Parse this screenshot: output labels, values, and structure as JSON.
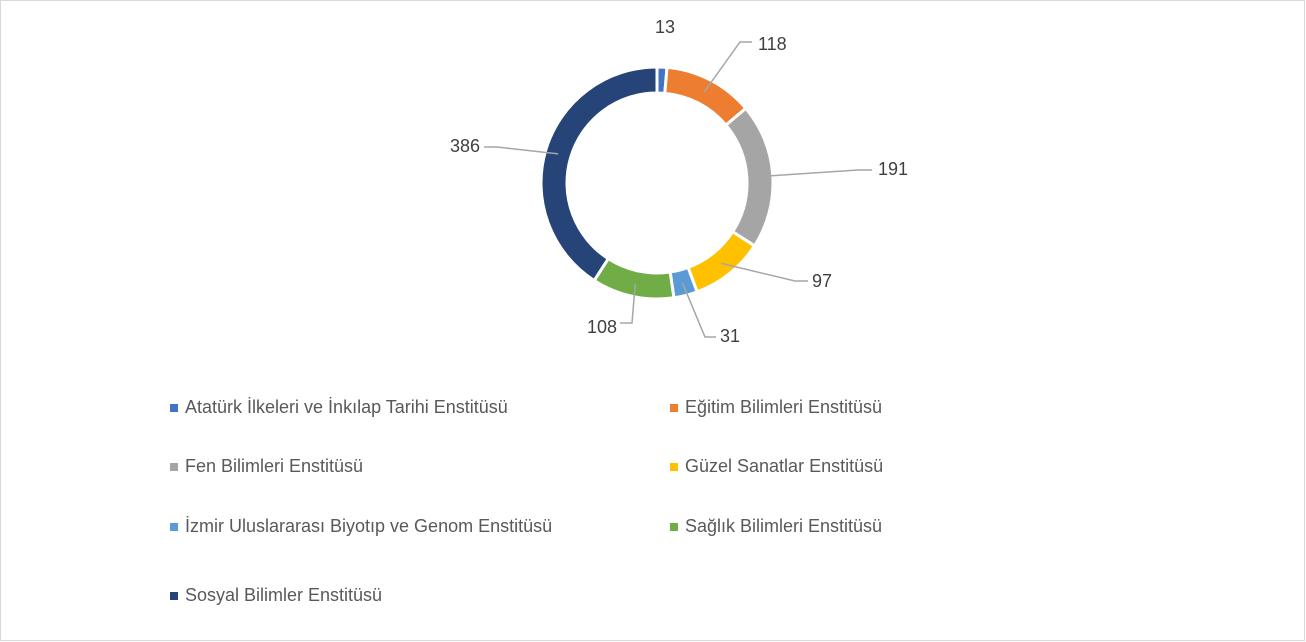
{
  "chart_data": {
    "type": "donut",
    "categories": [
      "Atatürk İlkeleri ve İnkılap Tarihi Enstitüsü",
      "Eğitim Bilimleri Enstitüsü",
      "Fen Bilimleri Enstitüsü",
      "Güzel Sanatlar Enstitüsü",
      "İzmir Uluslararası Biyotıp ve Genom Enstitüsü",
      "Sağlık Bilimleri Enstitüsü",
      "Sosyal Bilimler Enstitüsü"
    ],
    "values": [
      13,
      118,
      191,
      97,
      31,
      108,
      386
    ],
    "colors": [
      "#4472c4",
      "#ed7d31",
      "#a5a5a5",
      "#ffc000",
      "#5b9bd5",
      "#70ad47",
      "#264478"
    ],
    "legend": "bottom"
  }
}
